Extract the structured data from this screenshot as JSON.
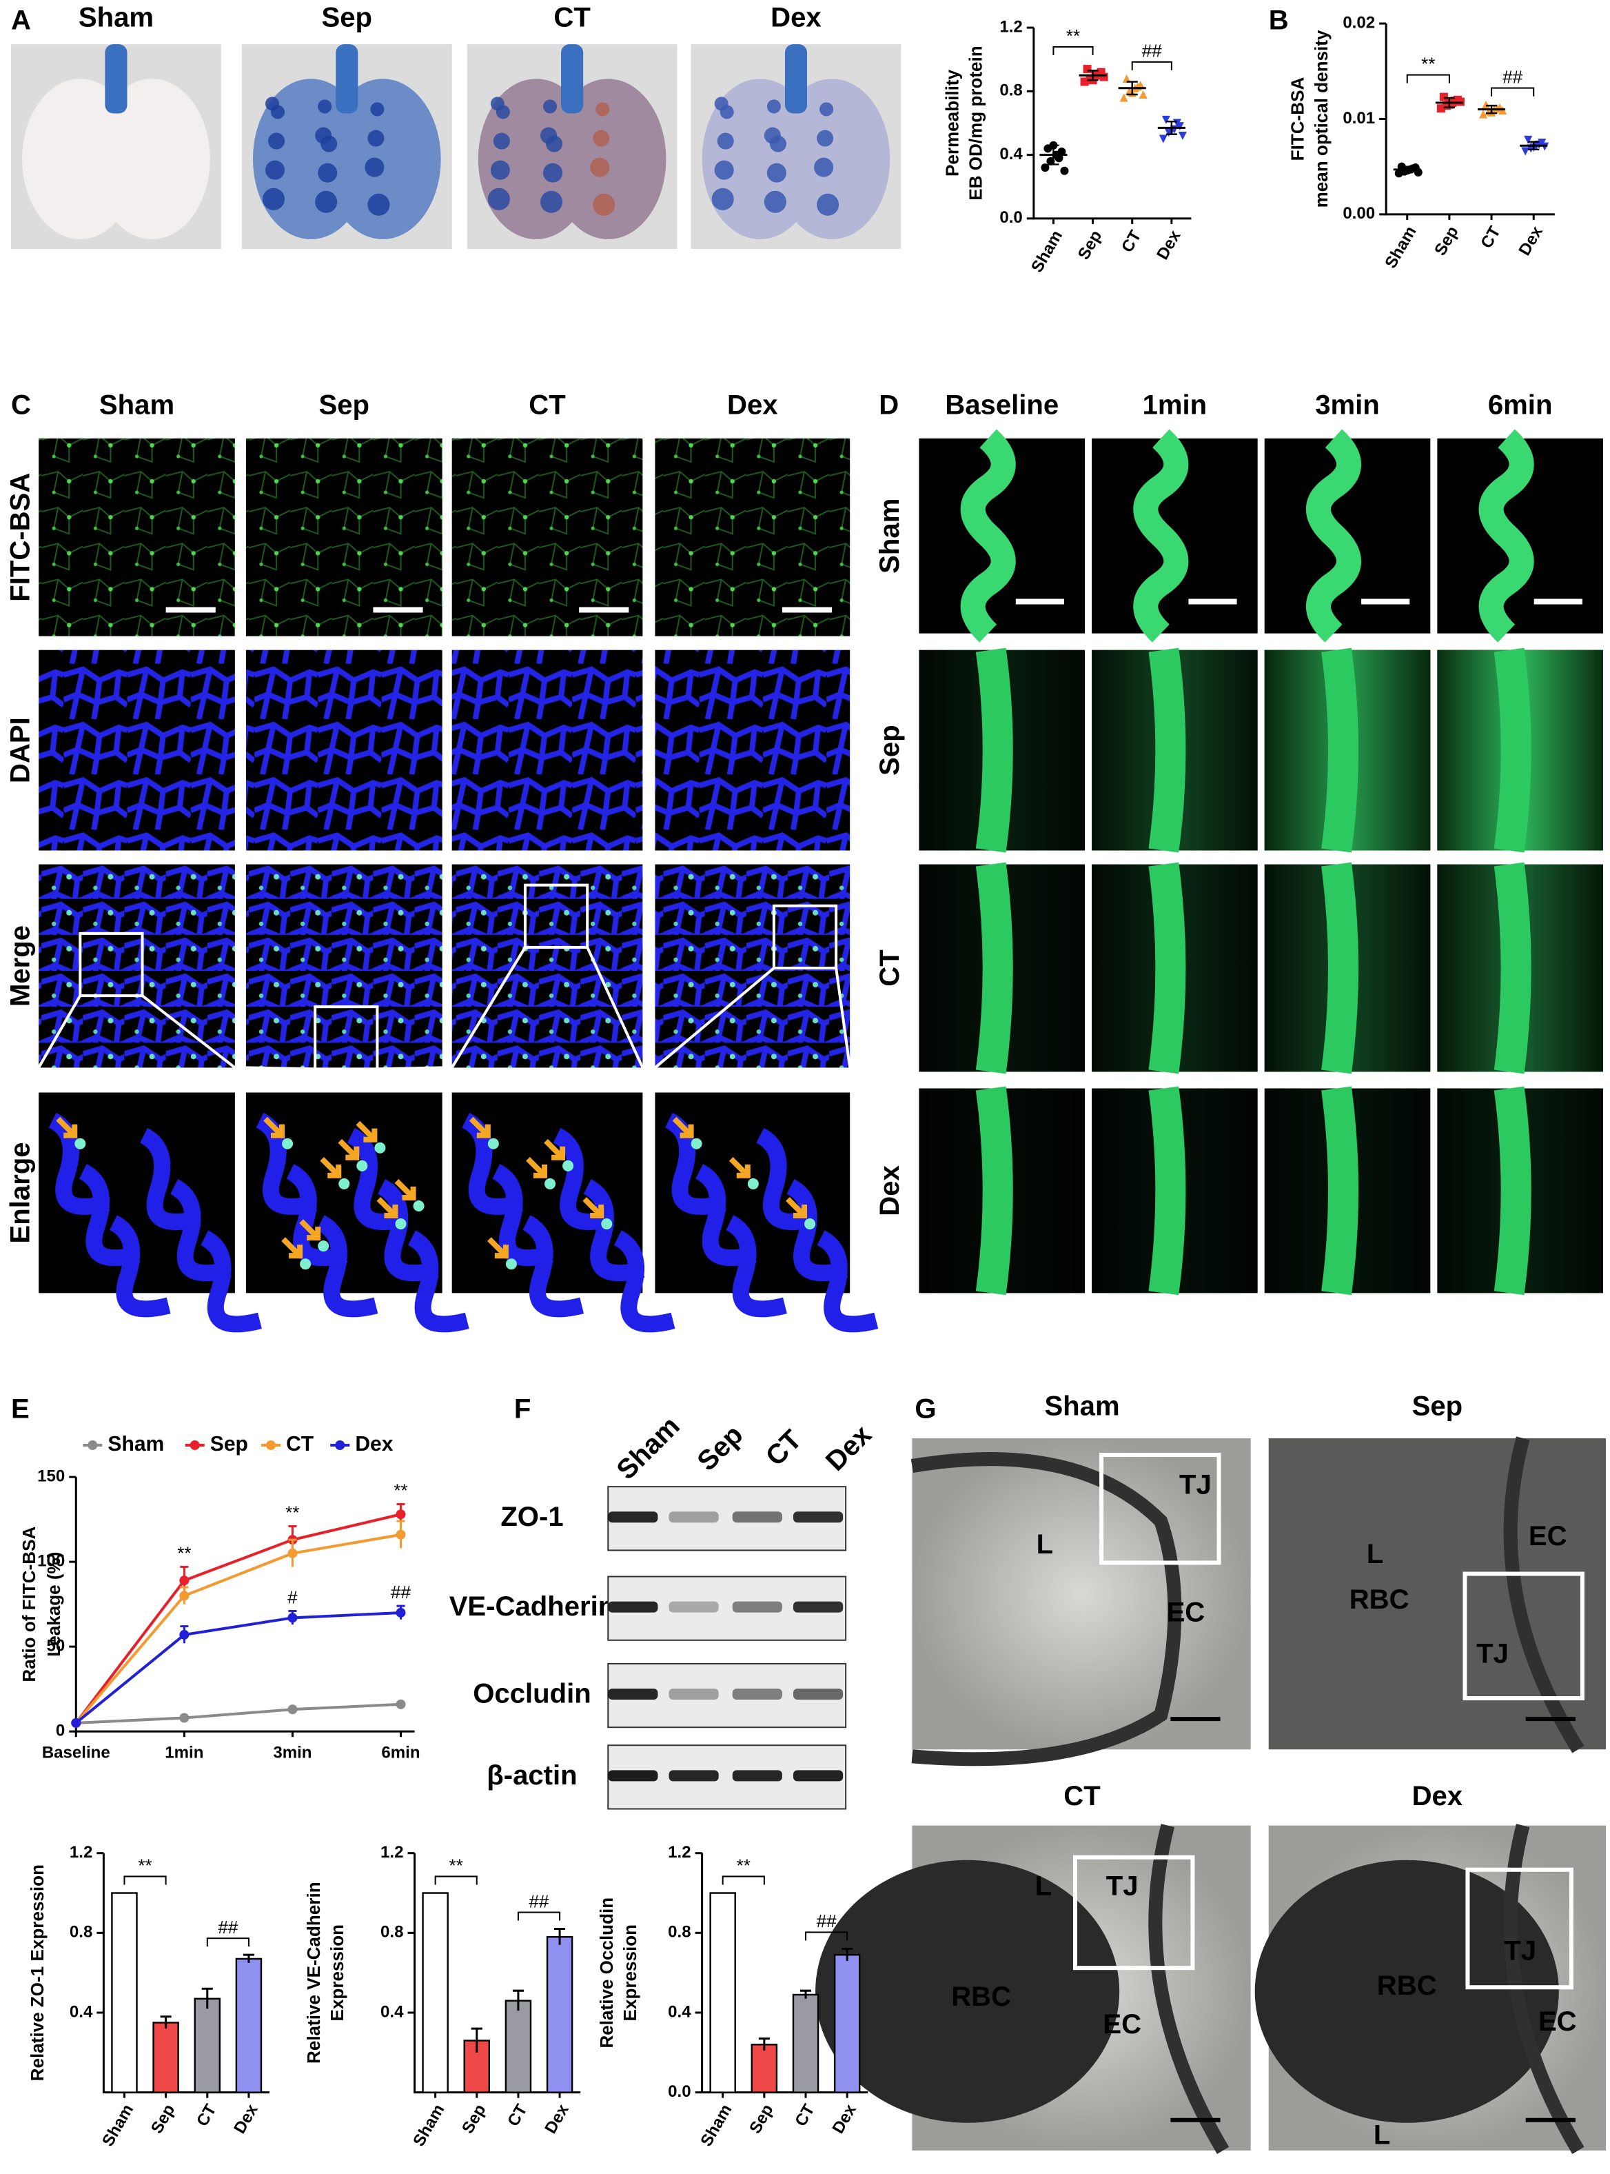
{
  "panel_A": {
    "label": "A",
    "columns": [
      "Sham",
      "Sep",
      "CT",
      "Dex"
    ]
  },
  "panel_B": {
    "label": "B"
  },
  "panel_C": {
    "label": "C",
    "columns": [
      "Sham",
      "Sep",
      "CT",
      "Dex"
    ],
    "rows": [
      "FITC-BSA",
      "DAPI",
      "Merge",
      "Enlarge"
    ]
  },
  "panel_D": {
    "label": "D",
    "columns": [
      "Baseline",
      "1min",
      "3min",
      "6min"
    ],
    "rows": [
      "Sham",
      "Sep",
      "CT",
      "Dex"
    ]
  },
  "panel_E": {
    "label": "E"
  },
  "panel_F": {
    "label": "F",
    "lanes": [
      "Sham",
      "Sep",
      "CT",
      "Dex"
    ],
    "rows": [
      "ZO-1",
      "VE-Cadherin",
      "Occludin",
      "β-actin"
    ]
  },
  "panel_G": {
    "label": "G",
    "images": [
      {
        "title": "Sham",
        "labels": [
          "TJ",
          "L",
          "EC"
        ]
      },
      {
        "title": "Sep",
        "labels": [
          "EC",
          "L",
          "RBC",
          "TJ"
        ]
      },
      {
        "title": "CT",
        "labels": [
          "L",
          "TJ",
          "RBC",
          "EC"
        ]
      },
      {
        "title": "Dex",
        "labels": [
          "RBC",
          "TJ",
          "EC",
          "L"
        ]
      }
    ]
  },
  "chart_data": [
    {
      "type": "dot",
      "ylabel": [
        "Permeability",
        "EB OD/mg protein"
      ],
      "categories": [
        "Sham",
        "Sep",
        "CT",
        "Dex"
      ],
      "colors": [
        "#000000",
        "#e8202a",
        "#f59a30",
        "#2b3be0"
      ],
      "values": [
        0.4,
        0.9,
        0.82,
        0.57
      ],
      "errors": [
        0.06,
        0.03,
        0.04,
        0.04
      ],
      "points": [
        [
          0.32,
          0.36,
          0.4,
          0.42,
          0.44,
          0.46,
          0.38,
          0.3
        ],
        [
          0.86,
          0.88,
          0.9,
          0.92,
          0.94,
          0.87,
          0.91,
          0.89
        ],
        [
          0.76,
          0.8,
          0.82,
          0.84,
          0.88,
          0.79,
          0.83,
          0.78
        ],
        [
          0.5,
          0.54,
          0.56,
          0.58,
          0.62,
          0.55,
          0.6,
          0.52
        ]
      ],
      "ylim": [
        0,
        1.2
      ],
      "yticks": [
        {
          "value": 0,
          "label": "0.0"
        },
        0.4,
        0.8,
        1.2
      ],
      "significance": [
        {
          "pair": [
            "Sham",
            "Sep"
          ],
          "label": "**"
        },
        {
          "pair": [
            "CT",
            "Dex"
          ],
          "label": "##"
        }
      ]
    },
    {
      "type": "dot",
      "ylabel": [
        "FITC-BSA",
        "mean optical density"
      ],
      "categories": [
        "Sham",
        "Sep",
        "CT",
        "Dex"
      ],
      "colors": [
        "#000000",
        "#e8202a",
        "#f59a30",
        "#2b3be0"
      ],
      "values": [
        0.0047,
        0.0117,
        0.011,
        0.0072
      ],
      "errors": [
        0.0003,
        0.0005,
        0.0004,
        0.0004
      ],
      "points": [
        [
          0.0043,
          0.0045,
          0.0047,
          0.0049,
          0.005,
          0.0046,
          0.0048,
          0.0044
        ],
        [
          0.0111,
          0.0114,
          0.0117,
          0.012,
          0.0123,
          0.0115,
          0.0119,
          0.0118
        ],
        [
          0.0105,
          0.0108,
          0.011,
          0.0112,
          0.0115,
          0.0107,
          0.0111,
          0.0109
        ],
        [
          0.0066,
          0.0069,
          0.0072,
          0.0075,
          0.0078,
          0.007,
          0.0073,
          0.0071
        ]
      ],
      "ylim": [
        0,
        0.02
      ],
      "yticks": [
        {
          "value": 0,
          "label": "0.00"
        },
        0.01,
        0.02
      ],
      "significance": [
        {
          "pair": [
            "Sham",
            "Sep"
          ],
          "label": "**"
        },
        {
          "pair": [
            "CT",
            "Dex"
          ],
          "label": "##"
        }
      ]
    },
    {
      "type": "line",
      "ylabel": [
        "Ratio of FITC-BSA",
        "Leakage (%)"
      ],
      "categories": [
        "Baseline",
        "1min",
        "3min",
        "6min"
      ],
      "ylim": [
        0,
        150
      ],
      "yticks": [
        0,
        50,
        100,
        150
      ],
      "series": [
        {
          "name": "Sham",
          "color": "#8a8a8a",
          "values": [
            5,
            8,
            13,
            16
          ],
          "errors": [
            0,
            1,
            1,
            1
          ],
          "annotations": [
            null,
            null,
            null,
            null
          ]
        },
        {
          "name": "Sep",
          "color": "#e8202a",
          "values": [
            5,
            89,
            113,
            128
          ],
          "errors": [
            0,
            8,
            8,
            6
          ],
          "annotations": [
            null,
            "**",
            "**",
            "**"
          ]
        },
        {
          "name": "CT",
          "color": "#f59a30",
          "values": [
            5,
            80,
            105,
            116
          ],
          "errors": [
            0,
            5,
            8,
            8
          ],
          "annotations": [
            null,
            null,
            null,
            null
          ]
        },
        {
          "name": "Dex",
          "color": "#2020d8",
          "values": [
            5,
            57,
            67,
            70
          ],
          "errors": [
            0,
            5,
            4,
            4
          ],
          "annotations": [
            null,
            null,
            "#",
            "##"
          ]
        }
      ]
    },
    {
      "type": "bar",
      "ylabel": [
        "Relative ZO-1 Expression"
      ],
      "categories": [
        "Sham",
        "Sep",
        "CT",
        "Dex"
      ],
      "colors": [
        "#ffffff",
        "#f04848",
        "#9a9aa2",
        "#9090f0"
      ],
      "values": [
        1.0,
        0.35,
        0.47,
        0.67
      ],
      "errors": [
        0,
        0.03,
        0.05,
        0.02
      ],
      "ylim": [
        0,
        1.2
      ],
      "yticks": [
        0.4,
        0.8,
        1.2
      ],
      "significance": [
        {
          "pair": [
            "Sham",
            "Sep"
          ],
          "label": "**"
        },
        {
          "pair": [
            "CT",
            "Dex"
          ],
          "label": "##"
        }
      ]
    },
    {
      "type": "bar",
      "ylabel": [
        "Relative VE-Cadherin",
        "Expression"
      ],
      "categories": [
        "Sham",
        "Sep",
        "CT",
        "Dex"
      ],
      "colors": [
        "#ffffff",
        "#f04848",
        "#9a9aa2",
        "#9090f0"
      ],
      "values": [
        1.0,
        0.26,
        0.46,
        0.78
      ],
      "errors": [
        0,
        0.06,
        0.05,
        0.04
      ],
      "ylim": [
        0,
        1.2
      ],
      "yticks": [
        0.4,
        0.8,
        1.2
      ],
      "significance": [
        {
          "pair": [
            "Sham",
            "Sep"
          ],
          "label": "**"
        },
        {
          "pair": [
            "CT",
            "Dex"
          ],
          "label": "##"
        }
      ]
    },
    {
      "type": "bar",
      "ylabel": [
        "Relative Occludin",
        "Expression"
      ],
      "categories": [
        "Sham",
        "Sep",
        "CT",
        "Dex"
      ],
      "colors": [
        "#ffffff",
        "#f04848",
        "#9a9aa2",
        "#9090f0"
      ],
      "values": [
        1.0,
        0.24,
        0.49,
        0.69
      ],
      "errors": [
        0,
        0.03,
        0.02,
        0.03
      ],
      "ylim": [
        0,
        1.2
      ],
      "yticks": [
        {
          "value": 0,
          "label": "0.0"
        },
        0.4,
        0.8,
        1.2
      ],
      "significance": [
        {
          "pair": [
            "Sham",
            "Sep"
          ],
          "label": "**"
        },
        {
          "pair": [
            "CT",
            "Dex"
          ],
          "label": "##"
        }
      ]
    }
  ]
}
